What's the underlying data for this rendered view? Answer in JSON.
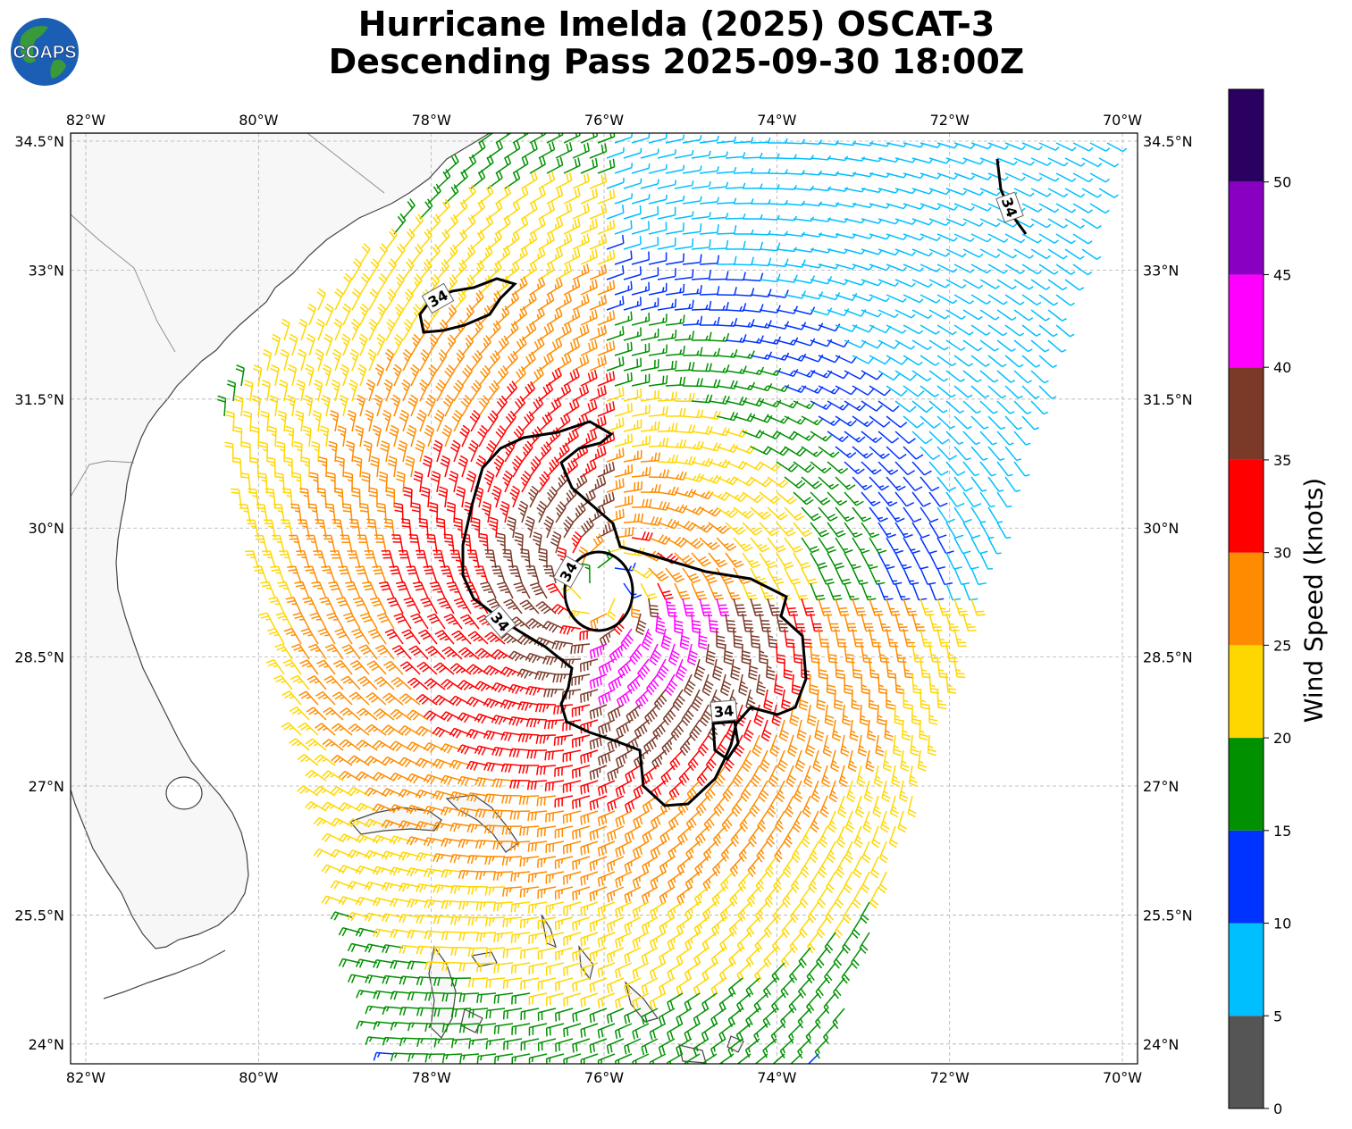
{
  "title": {
    "line1": "Hurricane Imelda (2025) OSCAT-3",
    "line2": "Descending Pass 2025-09-30 18:00Z"
  },
  "logo": {
    "text": "COAPS"
  },
  "map": {
    "lon_ticks": [
      "82°W",
      "80°W",
      "78°W",
      "76°W",
      "74°W",
      "72°W",
      "70°W"
    ],
    "lat_ticks": [
      "34.5°N",
      "33°N",
      "31.5°N",
      "30°N",
      "28.5°N",
      "27°N",
      "25.5°N",
      "24°N"
    ],
    "contour_label": "34",
    "storm_center": {
      "lon": -76.0,
      "lat": 29.3
    },
    "colors": {
      "land": "#f7f7f7",
      "coast": "#444444",
      "grid": "#b0b0b0",
      "contour": "#000000"
    }
  },
  "colorbar": {
    "label": "Wind Speed (knots)",
    "ticks": [
      "0",
      "5",
      "10",
      "15",
      "20",
      "25",
      "30",
      "35",
      "40",
      "45",
      "50"
    ],
    "bins": [
      {
        "min": 0,
        "max": 5,
        "color": "#555555"
      },
      {
        "min": 5,
        "max": 10,
        "color": "#00bfff"
      },
      {
        "min": 10,
        "max": 15,
        "color": "#0033ff"
      },
      {
        "min": 15,
        "max": 20,
        "color": "#009000"
      },
      {
        "min": 20,
        "max": 25,
        "color": "#ffd700"
      },
      {
        "min": 25,
        "max": 30,
        "color": "#ff8c00"
      },
      {
        "min": 30,
        "max": 35,
        "color": "#ff0000"
      },
      {
        "min": 35,
        "max": 40,
        "color": "#7b3a28"
      },
      {
        "min": 40,
        "max": 45,
        "color": "#ff00ff"
      },
      {
        "min": 45,
        "max": 50,
        "color": "#8a00c2"
      },
      {
        "min": 50,
        "max": 55,
        "color": "#2a0060"
      }
    ]
  }
}
